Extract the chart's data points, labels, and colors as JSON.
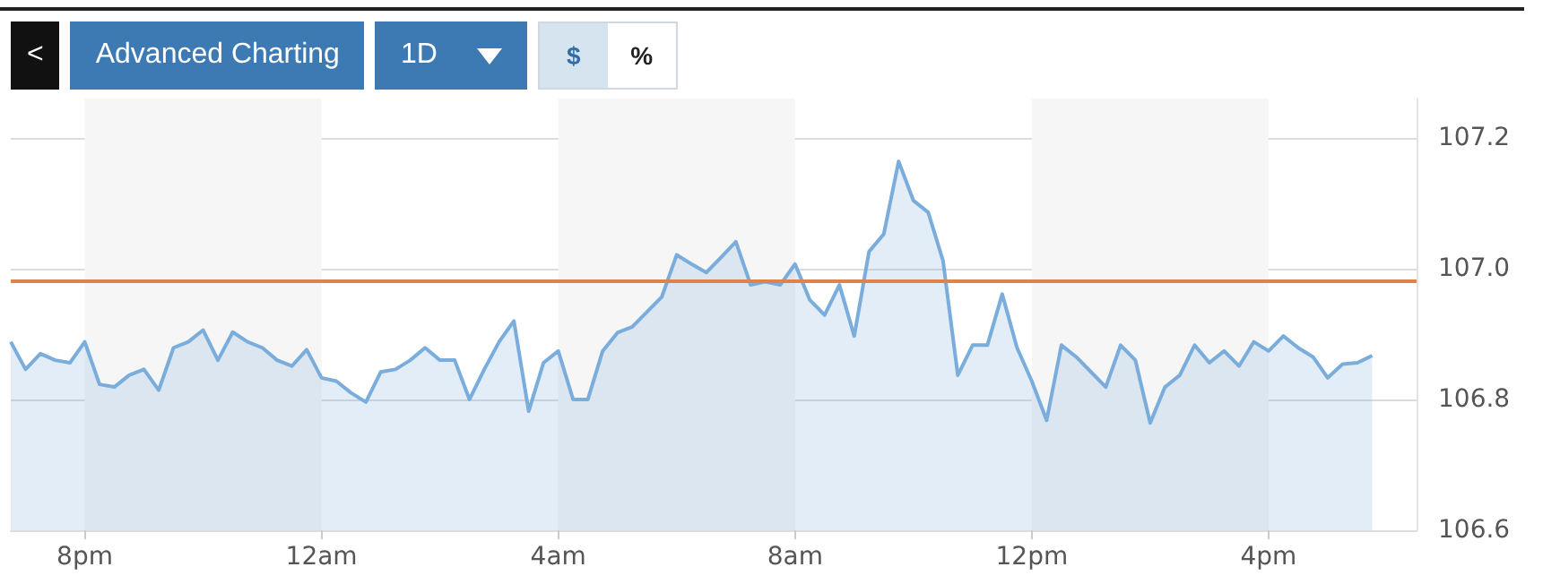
{
  "chart_data": {
    "type": "area",
    "annotations": [
      "<",
      "Advanced Charting",
      "1D",
      "$",
      "%"
    ],
    "categories": [
      null,
      null,
      null,
      null,
      null,
      "8pm",
      null,
      null,
      null,
      null,
      null,
      null,
      null,
      null,
      null,
      null,
      null,
      null,
      null,
      null,
      null,
      "12am",
      null,
      null,
      null,
      null,
      null,
      null,
      null,
      null,
      null,
      null,
      null,
      null,
      null,
      null,
      null,
      "4am",
      null,
      null,
      null,
      null,
      null,
      null,
      null,
      null,
      null,
      null,
      null,
      null,
      null,
      null,
      null,
      "8am",
      null,
      null,
      null,
      null,
      null,
      null,
      null,
      null,
      null,
      null,
      null,
      null,
      null,
      null,
      null,
      "12pm",
      null,
      null,
      null,
      null,
      null,
      null,
      null,
      null,
      null,
      null,
      null,
      null,
      null,
      null,
      null,
      "4pm",
      null,
      null,
      null,
      null,
      null,
      null,
      null,
      null,
      null,
      null
    ],
    "series": [
      {
        "color": "#7aaddc",
        "values": [
          106.888,
          106.846,
          106.87,
          106.86,
          106.856,
          106.888,
          106.823,
          106.819,
          106.837,
          106.846,
          106.814,
          106.879,
          106.888,
          106.906,
          106.86,
          106.903,
          106.888,
          106.879,
          106.86,
          106.851,
          106.876,
          106.833,
          106.828,
          106.81,
          106.796,
          106.842,
          106.846,
          106.86,
          106.879,
          106.86,
          106.86,
          106.8,
          106.846,
          106.888,
          106.92,
          106.782,
          106.856,
          106.874,
          106.8,
          106.8,
          106.874,
          106.902,
          106.911,
          106.934,
          106.957,
          107.021,
          107.007,
          106.994,
          107.017,
          107.041,
          106.975,
          106.98,
          106.975,
          107.007,
          106.952,
          106.929,
          106.975,
          106.897,
          107.026,
          107.053,
          107.164,
          107.104,
          107.086,
          107.012,
          106.837,
          106.883,
          106.883,
          106.961,
          106.879,
          106.828,
          106.768,
          106.883,
          106.865,
          106.842,
          106.819,
          106.883,
          106.86,
          106.764,
          106.819,
          106.837,
          106.883,
          106.856,
          106.874,
          106.851,
          106.888,
          106.874,
          106.897,
          106.879,
          106.865,
          106.833,
          106.854,
          106.856,
          106.867,
          null,
          null,
          null
        ]
      }
    ],
    "ylim": [
      106.6,
      107.26
    ],
    "yticks": [
      {
        "value": 106.6,
        "label": "106.6"
      },
      {
        "value": 106.8,
        "label": "106.8"
      },
      {
        "value": 107,
        "label": "107.0"
      },
      {
        "value": 107.2,
        "label": "107.2"
      }
    ],
    "ref_lines": [
      {
        "axis": "y",
        "value": 106.985,
        "color": "#e0834a"
      }
    ],
    "bands": [
      {
        "axis": "x",
        "from": "8pm",
        "to": "12am",
        "color": "#f6f6f6"
      },
      {
        "axis": "x",
        "from": "4am",
        "to": "8am",
        "color": "#f6f6f6"
      },
      {
        "axis": "x",
        "from": "12pm",
        "to": "4pm",
        "color": "#f6f6f6"
      }
    ],
    "grid": "y",
    "marker": "none",
    "line_style": "solid"
  }
}
